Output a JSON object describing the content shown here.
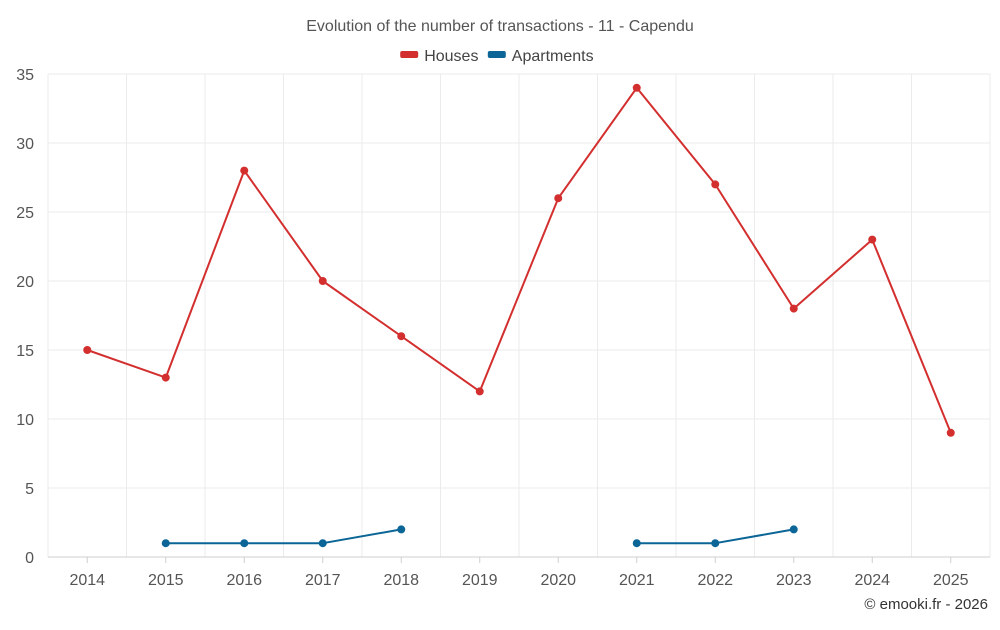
{
  "chart_data": {
    "type": "line",
    "title": "Evolution of the number of transactions - 11 - Capendu",
    "categories": [
      "2014",
      "2015",
      "2016",
      "2017",
      "2018",
      "2019",
      "2020",
      "2021",
      "2022",
      "2023",
      "2024",
      "2025"
    ],
    "series": [
      {
        "name": "Houses",
        "color": "#d32f2f",
        "values": [
          15,
          13,
          28,
          20,
          16,
          12,
          26,
          34,
          27,
          18,
          23,
          9
        ]
      },
      {
        "name": "Apartments",
        "color": "#0b6596",
        "values": [
          null,
          1,
          1,
          1,
          2,
          null,
          null,
          1,
          1,
          2,
          null,
          null
        ]
      }
    ],
    "ylim": [
      0,
      35
    ],
    "yticks": [
      0,
      5,
      10,
      15,
      20,
      25,
      30,
      35
    ],
    "grid": true,
    "legend": "top-center",
    "xlabel": "",
    "ylabel": ""
  },
  "credit": "© emooki.fr - 2026"
}
